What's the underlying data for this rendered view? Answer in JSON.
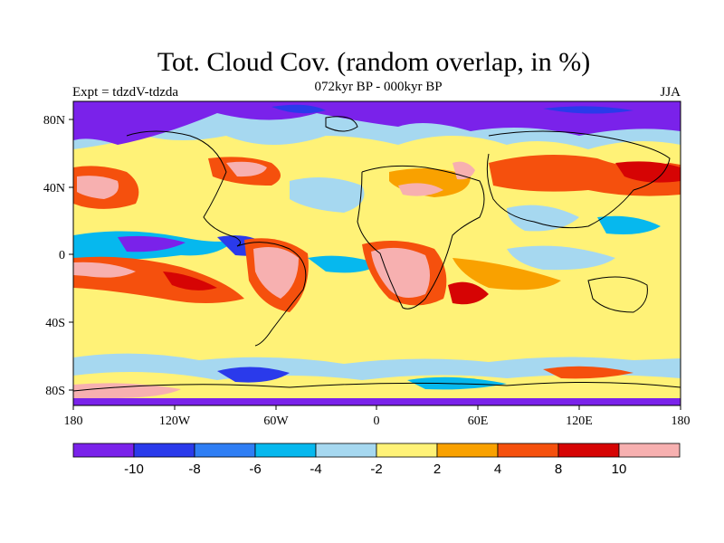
{
  "title": "Tot. Cloud Cov. (random overlap, in %)",
  "subtitle": "072kyr BP - 000kyr BP",
  "left_label": "Expt = tdzdV-tdzda",
  "right_label": "JJA",
  "map": {
    "lon_ticks": [
      "180",
      "120W",
      "60W",
      "0",
      "60E",
      "120E",
      "180"
    ],
    "lat_ticks": [
      "80N",
      "40N",
      "0",
      "40S",
      "80S"
    ]
  },
  "colorbar": {
    "colors": [
      "#7a22ea",
      "#2a3aeb",
      "#2f7ef4",
      "#06b8ee",
      "#a6d8f0",
      "#fff277",
      "#f9a100",
      "#f5500d",
      "#d60404",
      "#f7b0b0"
    ],
    "labels": [
      "-10",
      "-8",
      "-6",
      "-4",
      "-2",
      "2",
      "4",
      "8",
      "10"
    ]
  }
}
